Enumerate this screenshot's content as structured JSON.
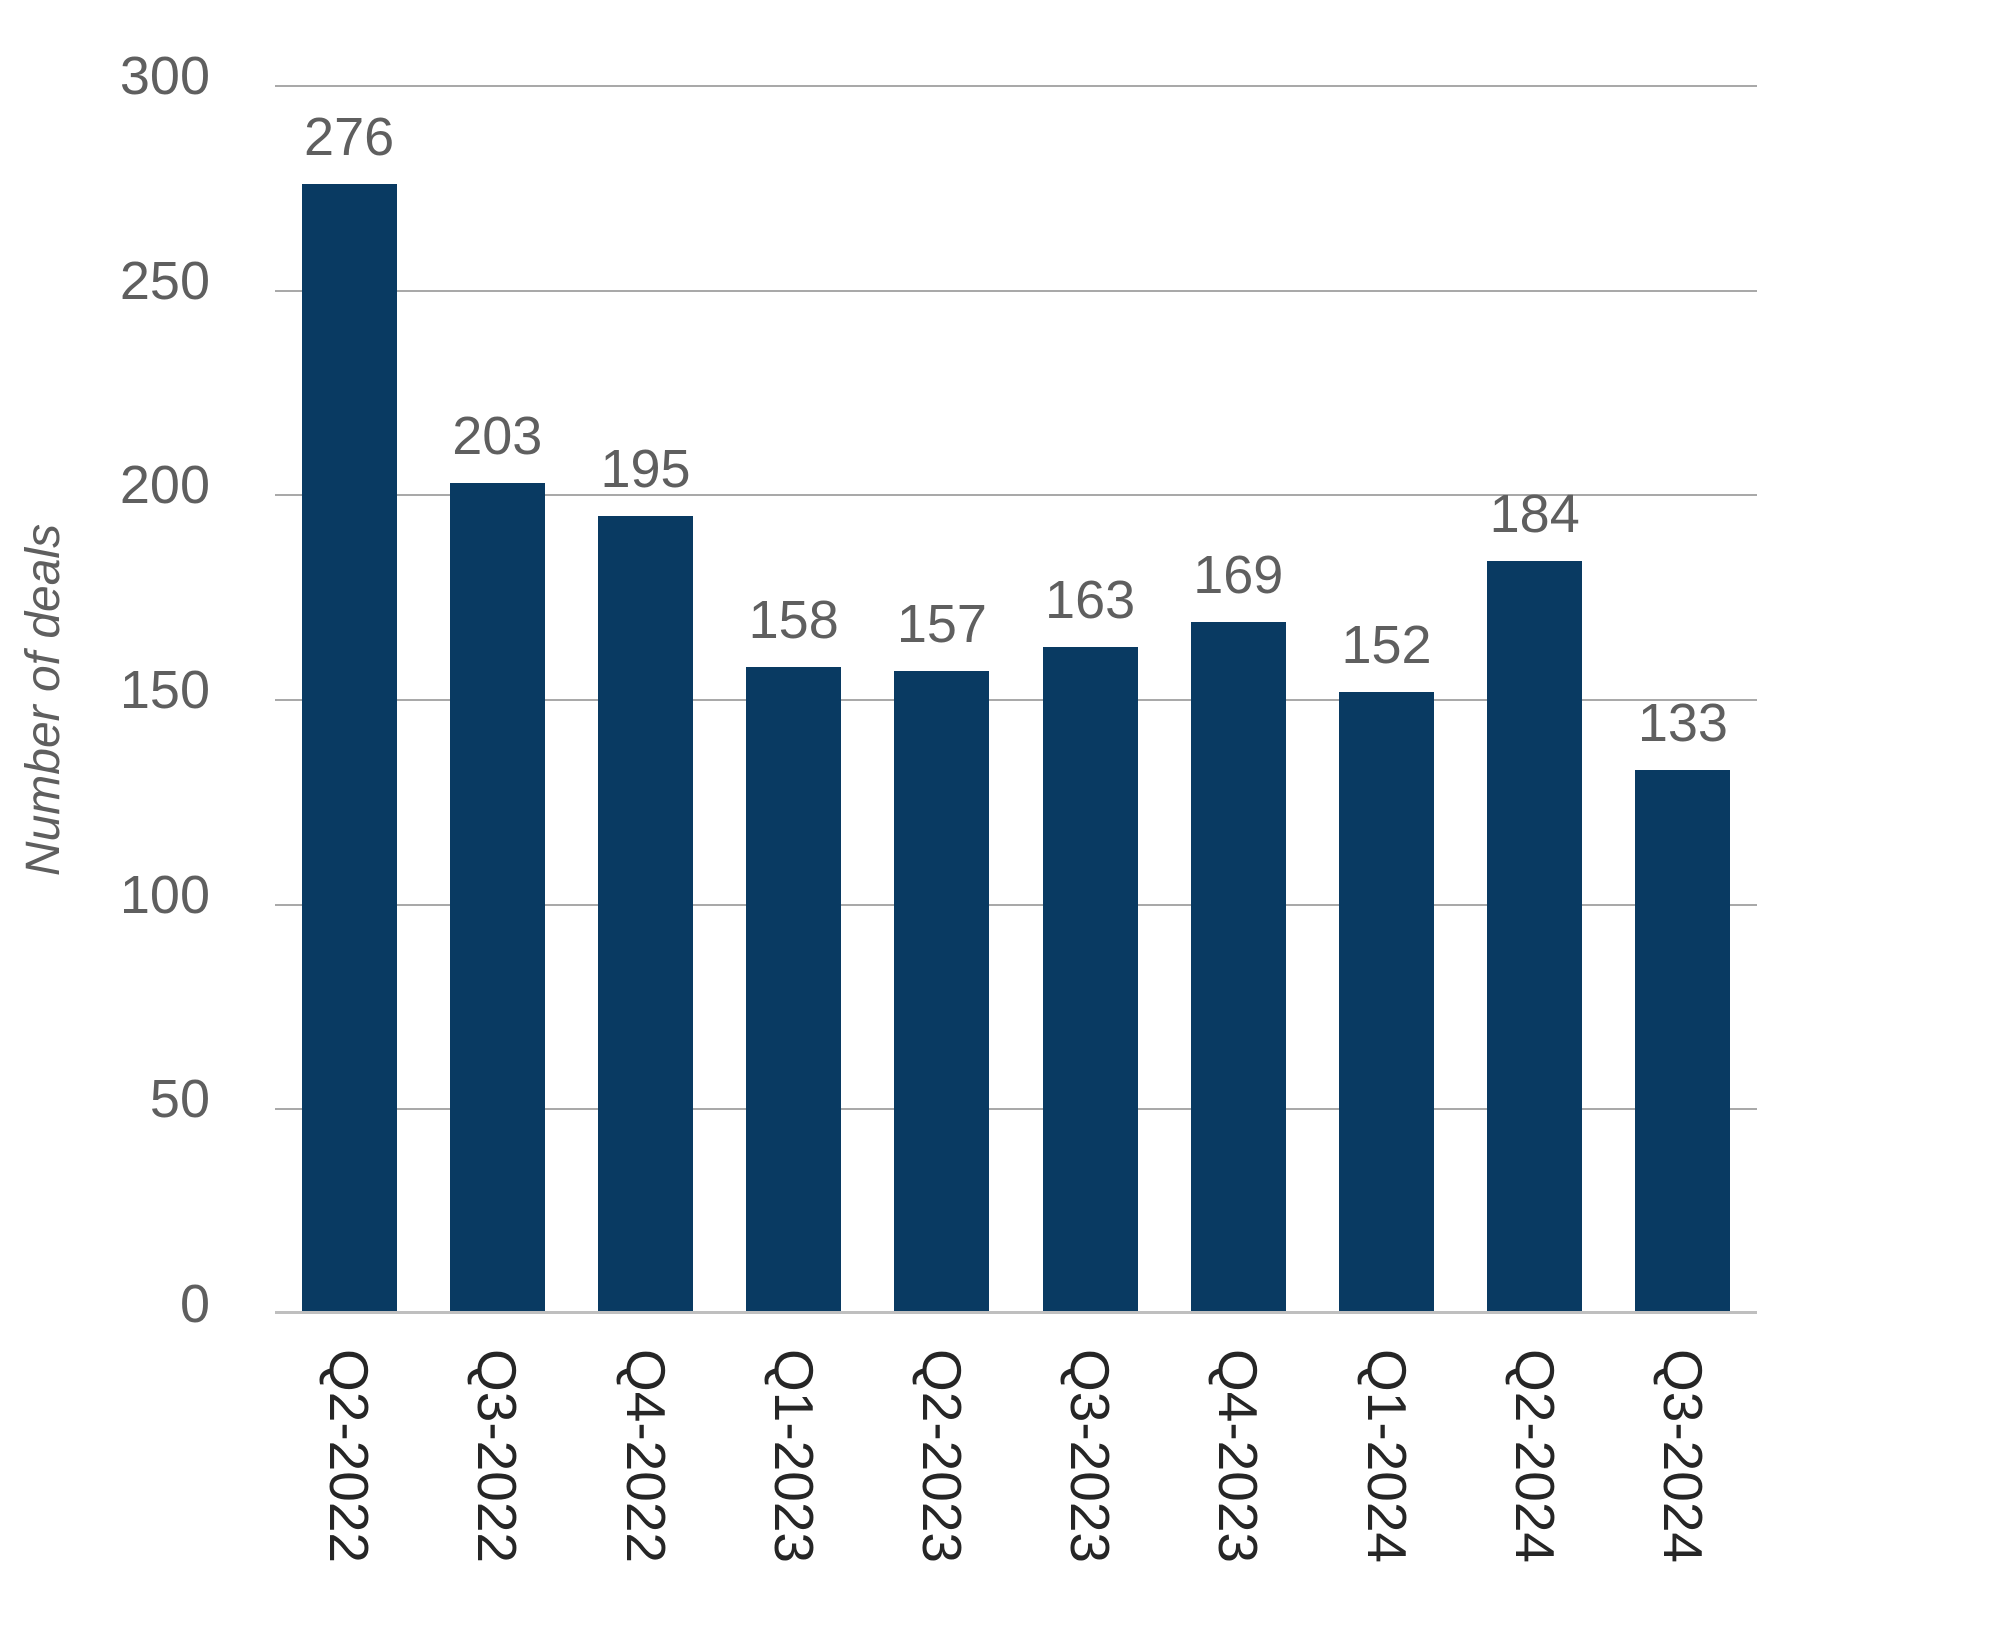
{
  "chart_data": {
    "type": "bar",
    "title": "",
    "xlabel": "",
    "ylabel": "Number of deals",
    "categories": [
      "Q2-2022",
      "Q3-2022",
      "Q4-2022",
      "Q1-2023",
      "Q2-2023",
      "Q3-2023",
      "Q4-2023",
      "Q1-2024",
      "Q2-2024",
      "Q3-2024"
    ],
    "values": [
      276,
      203,
      195,
      158,
      157,
      163,
      169,
      152,
      184,
      133
    ],
    "value_labels": [
      "276",
      "203",
      "195",
      "158",
      "157",
      "163",
      "169",
      "152",
      "184",
      "133"
    ],
    "ylim": [
      0,
      300
    ],
    "yticks": [
      0,
      50,
      100,
      150,
      200,
      250,
      300
    ],
    "grid": "horizontal",
    "legend": "none",
    "colors": {
      "bar": "#093a62",
      "value_label": "#5f5f5f",
      "y_tick_label": "#5f5f5f",
      "x_tick_label": "#262626",
      "y_axis_title": "#5f5f5f",
      "gridline": "#a9a9a9",
      "axis_line": "#bfbfbf",
      "background": "#ffffff"
    }
  }
}
